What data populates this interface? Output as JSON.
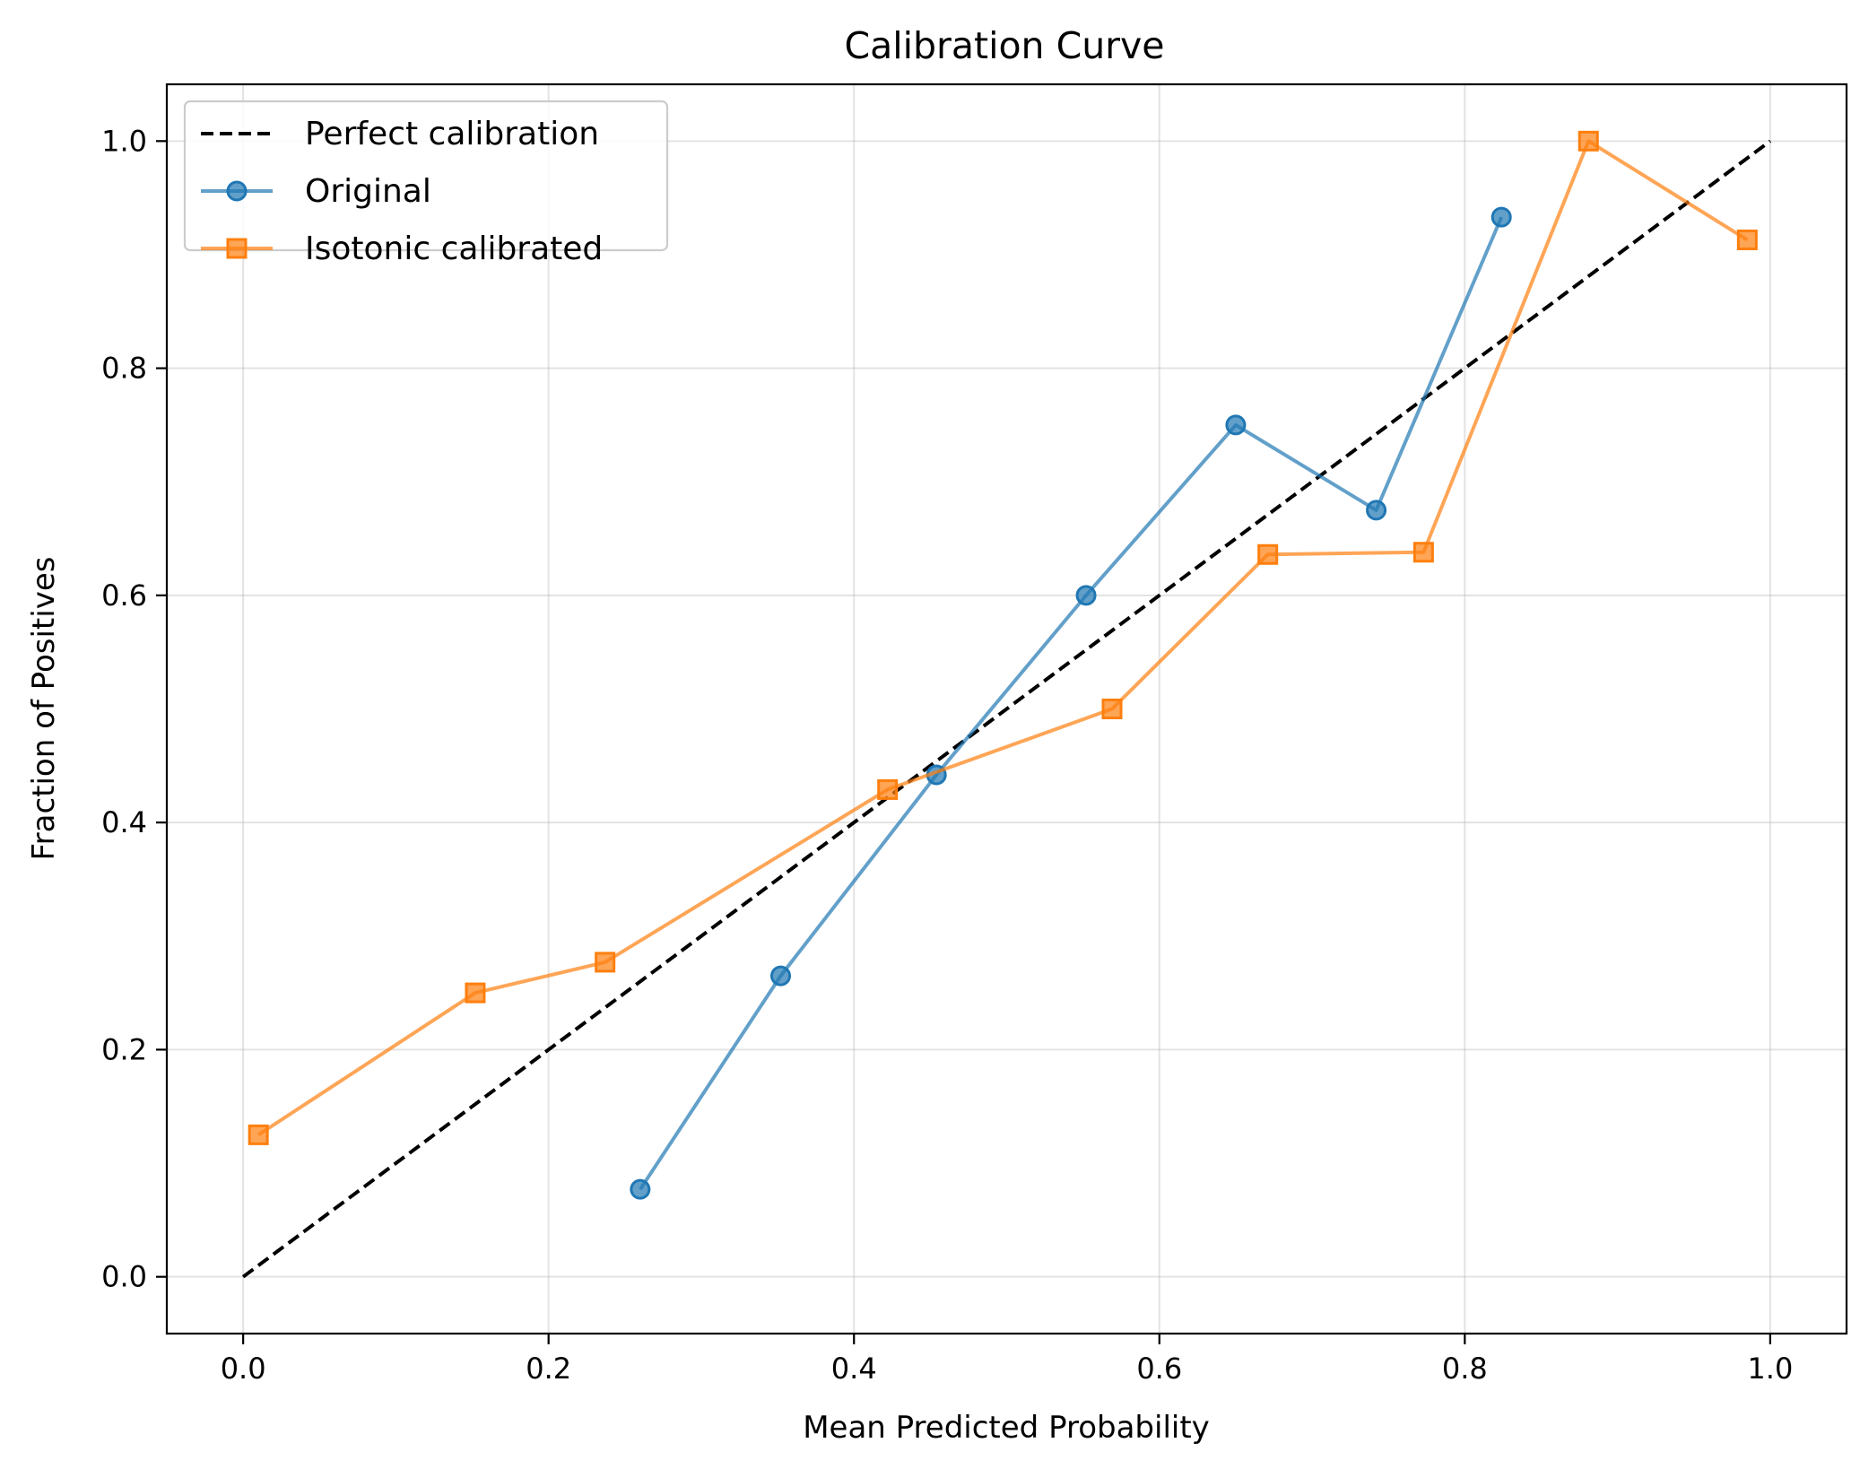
{
  "chart_data": {
    "type": "line",
    "title": "Calibration Curve",
    "xlabel": "Mean Predicted Probability",
    "ylabel": "Fraction of Positives",
    "xlim": [
      -0.05,
      1.05
    ],
    "ylim": [
      -0.05,
      1.05
    ],
    "xticks": [
      "0.0",
      "0.2",
      "0.4",
      "0.6",
      "0.8",
      "1.0"
    ],
    "yticks": [
      "0.0",
      "0.2",
      "0.4",
      "0.6",
      "0.8",
      "1.0"
    ],
    "grid": true,
    "legend_position": "top-left",
    "series": [
      {
        "name": "Perfect calibration",
        "style": "dashed",
        "marker": "none",
        "color": "#000000",
        "x": [
          0.0,
          1.0
        ],
        "y": [
          0.0,
          1.0
        ]
      },
      {
        "name": "Original",
        "style": "solid",
        "marker": "circle",
        "color": "#1f77b4",
        "x": [
          0.26,
          0.352,
          0.454,
          0.552,
          0.65,
          0.742,
          0.824
        ],
        "y": [
          0.077,
          0.265,
          0.442,
          0.6,
          0.75,
          0.675,
          0.933
        ]
      },
      {
        "name": "Isotonic calibrated",
        "style": "solid",
        "marker": "square",
        "color": "#ff7f0e",
        "x": [
          0.01,
          0.152,
          0.237,
          0.422,
          0.569,
          0.671,
          0.773,
          0.881,
          0.985
        ],
        "y": [
          0.125,
          0.25,
          0.277,
          0.429,
          0.5,
          0.636,
          0.638,
          1.0,
          0.913
        ]
      }
    ]
  }
}
